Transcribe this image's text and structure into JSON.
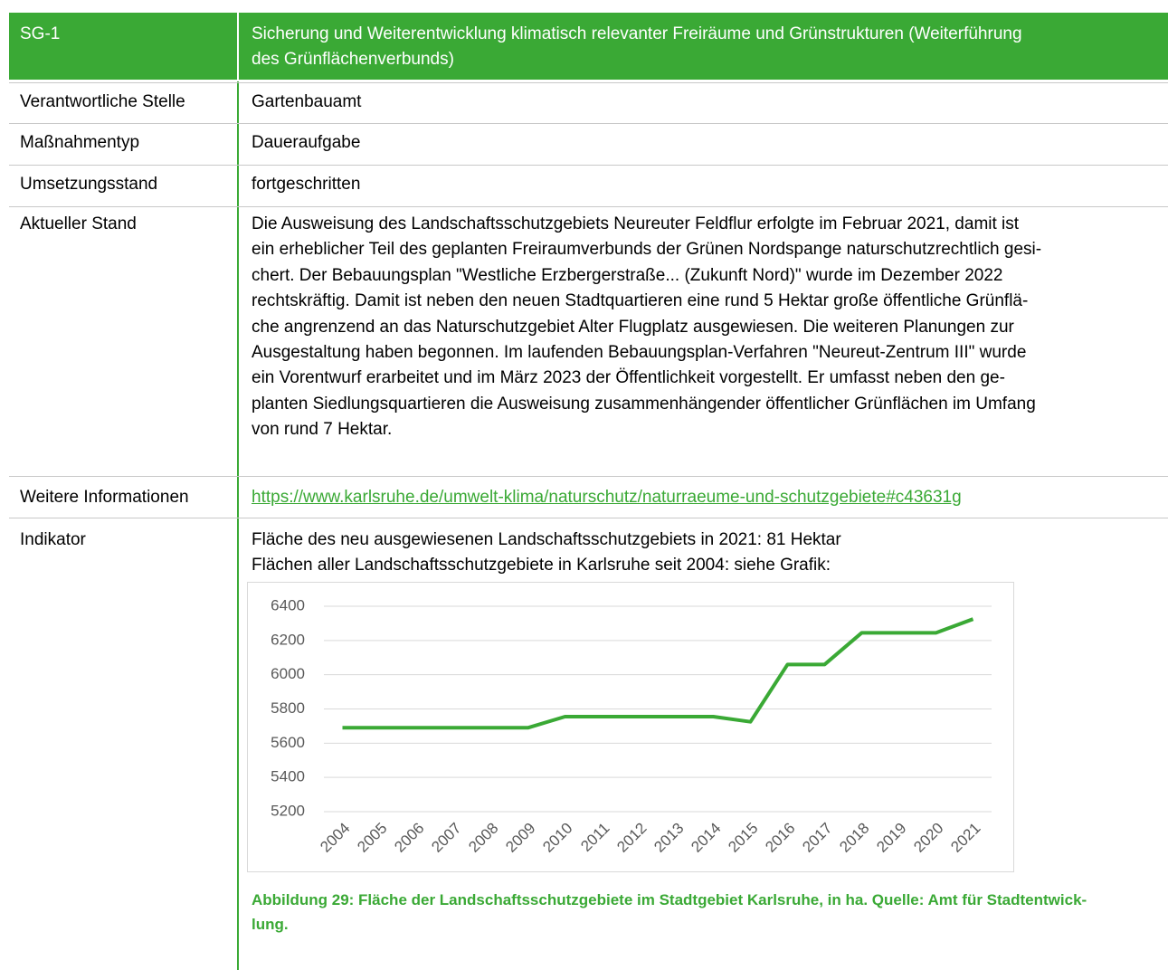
{
  "header": {
    "code": "SG-1",
    "title_lines": [
      "Sicherung und Weiterentwicklung klimatisch relevanter Freiräume und Grünstrukturen (Weiterführung",
      "des Grünflächenverbunds)"
    ]
  },
  "rows": [
    {
      "label": "Verantwortliche Stelle",
      "value": "Gartenbauamt"
    },
    {
      "label": "Maßnahmentyp",
      "value": "Daueraufgabe"
    },
    {
      "label": "Umsetzungsstand",
      "value": "fortgeschritten"
    },
    {
      "label": "Aktueller Stand",
      "lines": [
        "Die Ausweisung des Landschaftsschutzgebiets Neureuter Feldflur erfolgte im Februar 2021, damit ist",
        "ein erheblicher Teil des geplanten Freiraumverbunds der Grünen Nordspange naturschutzrechtlich gesi-",
        "chert. Der Bebauungsplan \"Westliche Erzbergerstraße... (Zukunft Nord)\" wurde im Dezember 2022",
        "rechtskräftig. Damit ist neben den neuen Stadtquartieren eine rund 5 Hektar große öffentliche Grünflä-",
        "che angrenzend an das Naturschutzgebiet Alter Flugplatz ausgewiesen. Die weiteren Planungen zur",
        "Ausgestaltung haben begonnen. Im laufenden Bebauungsplan-Verfahren \"Neureut-Zentrum III\" wurde",
        "ein Vorentwurf erarbeitet und im März 2023 der Öffentlichkeit vorgestellt. Er umfasst neben den ge-",
        "planten Siedlungsquartieren die Ausweisung zusammenhängender öffentlicher Grünflächen im Umfang",
        "von rund 7 Hektar."
      ]
    },
    {
      "label": "Weitere Informationen",
      "link": "https://www.karlsruhe.de/umwelt-klima/naturschutz/naturraeume-und-schutzgebiete#c43631g"
    },
    {
      "label": "Indikator",
      "lines": [
        "Fläche des neu ausgewiesenen Landschaftsschutzgebiets in 2021: 81 Hektar",
        "Flächen aller Landschaftsschutzgebiete in Karlsruhe seit 2004: siehe Grafik:"
      ]
    }
  ],
  "chart_data": {
    "type": "line",
    "categories": [
      "2004",
      "2005",
      "2006",
      "2007",
      "2008",
      "2009",
      "2010",
      "2011",
      "2012",
      "2013",
      "2014",
      "2015",
      "2016",
      "2017",
      "2018",
      "2019",
      "2020",
      "2021"
    ],
    "values": [
      5690,
      5690,
      5690,
      5690,
      5690,
      5690,
      5755,
      5755,
      5755,
      5755,
      5755,
      5725,
      6060,
      6060,
      6245,
      6245,
      6245,
      6325
    ],
    "color": "#3aa935",
    "ylim": [
      5200,
      6400
    ],
    "yticks": [
      5200,
      5400,
      5600,
      5800,
      6000,
      6200,
      6400
    ],
    "grid": true
  },
  "caption_lines": [
    "Abbildung 29: Fläche der Landschaftsschutzgebiete im Stadtgebiet Karlsruhe, in ha. Quelle: Amt für Stadtentwick-",
    "lung."
  ]
}
